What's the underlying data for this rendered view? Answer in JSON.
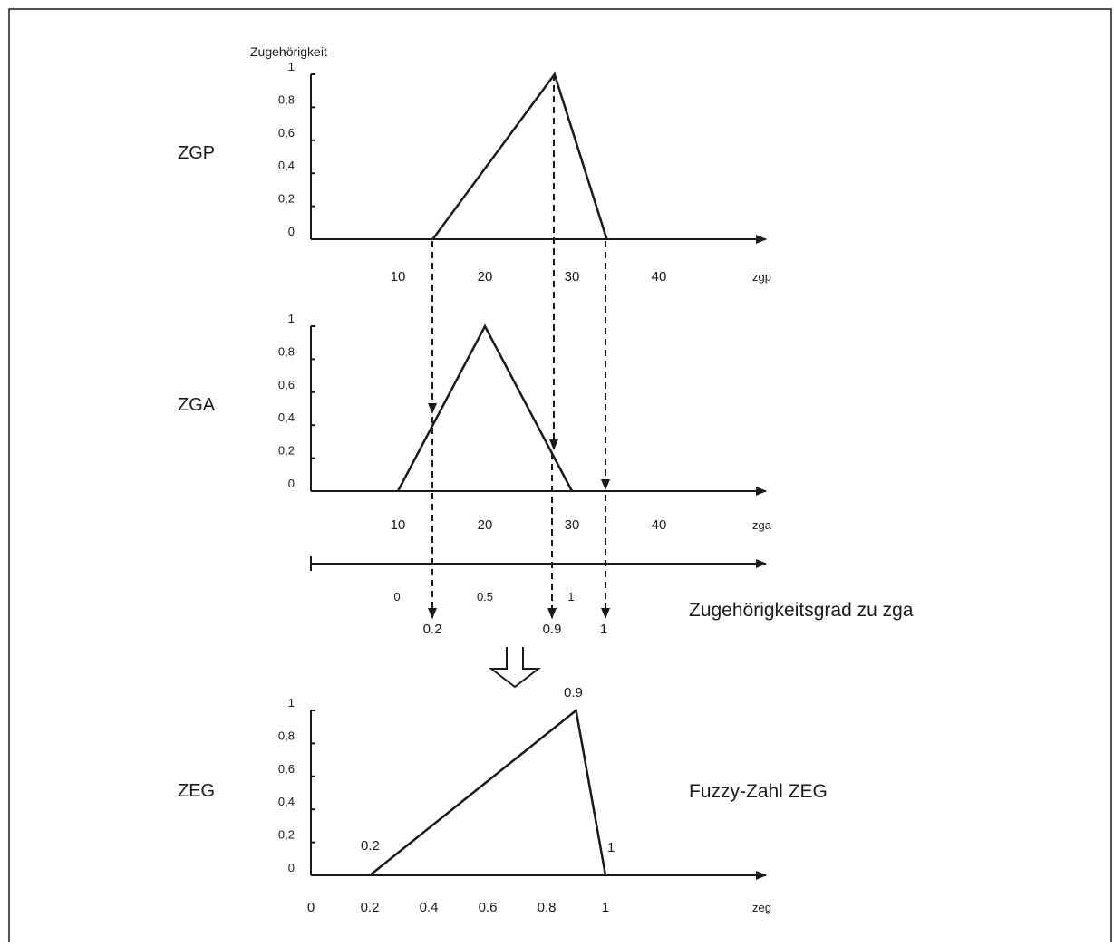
{
  "chart_data": [
    {
      "type": "line",
      "title": "ZGP",
      "ylabel": "Zugehörigkeit",
      "xlabel": "zgp",
      "ylim": [
        0,
        1
      ],
      "xlim": [
        0,
        42
      ],
      "y_ticks": [
        "0",
        "0,2",
        "0,4",
        "0,6",
        "0,8",
        "1"
      ],
      "x_ticks": [
        "10",
        "20",
        "30",
        "40"
      ],
      "series": [
        {
          "x": [
            14,
            28,
            34
          ],
          "y": [
            0,
            1,
            0
          ]
        }
      ]
    },
    {
      "type": "line",
      "title": "ZGA",
      "ylabel": "",
      "xlabel": "zga",
      "ylim": [
        0,
        1
      ],
      "xlim": [
        0,
        42
      ],
      "y_ticks": [
        "0",
        "0,2",
        "0,4",
        "0,6",
        "0,8",
        "1"
      ],
      "x_ticks": [
        "10",
        "20",
        "30",
        "40"
      ],
      "series": [
        {
          "x": [
            10,
            20,
            30
          ],
          "y": [
            0,
            1,
            0
          ]
        }
      ],
      "secondary_axis": {
        "label": "Zugehörigkeitsgrad zu zga",
        "ticks": [
          "0",
          "0.5",
          "1"
        ],
        "mapped_values": [
          "0.2",
          "0.9",
          "1"
        ]
      }
    },
    {
      "type": "line",
      "title": "ZEG",
      "ylabel": "",
      "xlabel": "zeg",
      "ylim": [
        0,
        1
      ],
      "xlim": [
        0,
        1.05
      ],
      "y_ticks": [
        "0",
        "0,2",
        "0,4",
        "0,6",
        "0,8",
        "1"
      ],
      "x_ticks": [
        "0",
        "0.2",
        "0.4",
        "0.6",
        "0.8",
        "1"
      ],
      "series": [
        {
          "x": [
            0.2,
            0.9,
            1
          ],
          "y": [
            0,
            1,
            0
          ]
        }
      ],
      "point_labels": [
        "0.2",
        "0.9",
        "1"
      ],
      "annotation": "Fuzzy-Zahl ZEG"
    }
  ]
}
